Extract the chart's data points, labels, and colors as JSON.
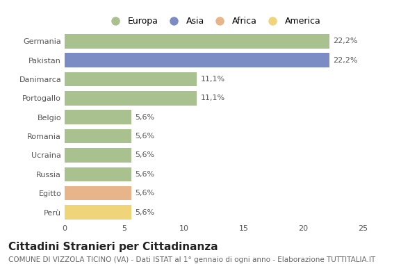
{
  "title": "Cittadini Stranieri per Cittadinanza",
  "subtitle": "COMUNE DI VIZZOLA TICINO (VA) - Dati ISTAT al 1° gennaio di ogni anno - Elaborazione TUTTITALIA.IT",
  "categories": [
    "Germania",
    "Pakistan",
    "Danimarca",
    "Portogallo",
    "Belgio",
    "Romania",
    "Ucraina",
    "Russia",
    "Egitto",
    "Perù"
  ],
  "values": [
    22.2,
    22.2,
    11.1,
    11.1,
    5.6,
    5.6,
    5.6,
    5.6,
    5.6,
    5.6
  ],
  "labels": [
    "22,2%",
    "22,2%",
    "11,1%",
    "11,1%",
    "5,6%",
    "5,6%",
    "5,6%",
    "5,6%",
    "5,6%",
    "5,6%"
  ],
  "colors": [
    "#a8c18f",
    "#7b8cc4",
    "#a8c18f",
    "#a8c18f",
    "#a8c18f",
    "#a8c18f",
    "#a8c18f",
    "#a8c18f",
    "#e8b48a",
    "#f0d47a"
  ],
  "legend_labels": [
    "Europa",
    "Asia",
    "Africa",
    "America"
  ],
  "legend_colors": [
    "#a8c18f",
    "#7b8cc4",
    "#e8b48a",
    "#f0d47a"
  ],
  "xlim": [
    0,
    25
  ],
  "xticks": [
    0,
    5,
    10,
    15,
    20,
    25
  ],
  "background_color": "#ffffff",
  "bar_height": 0.75,
  "title_fontsize": 11,
  "subtitle_fontsize": 7.5,
  "label_fontsize": 8,
  "tick_fontsize": 8,
  "legend_fontsize": 9
}
